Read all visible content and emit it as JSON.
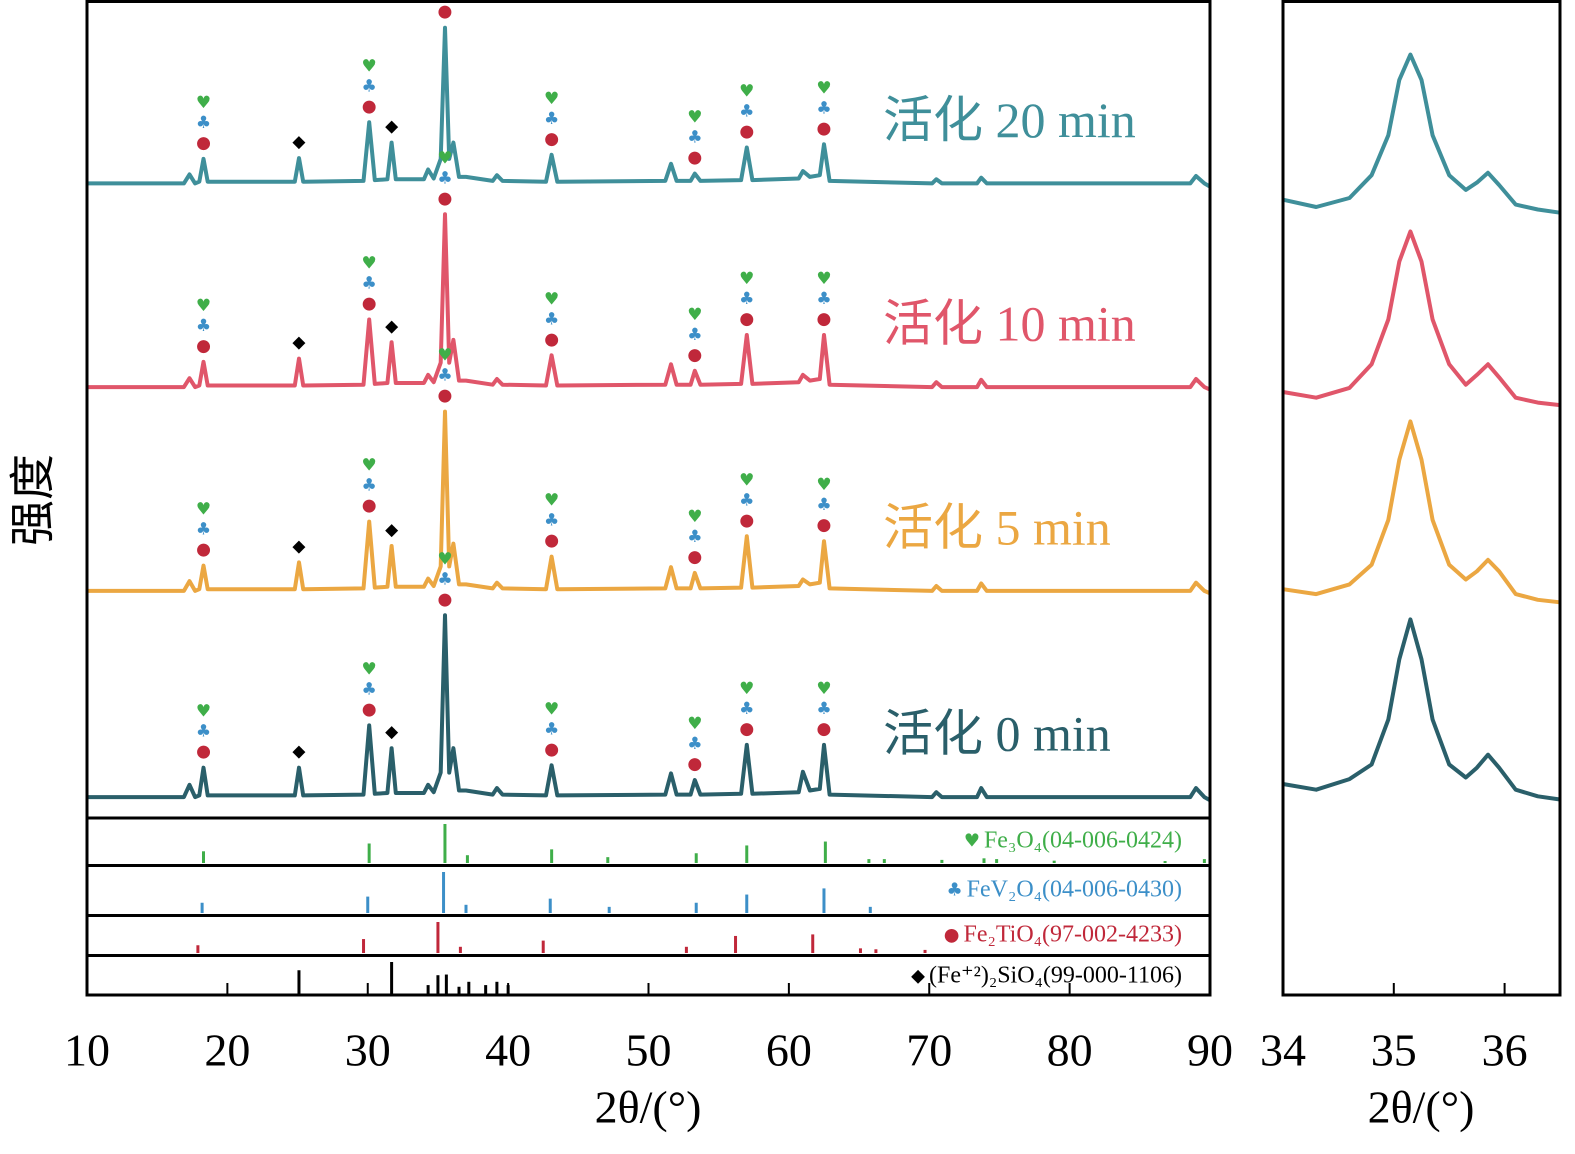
{
  "chart_data": [
    {
      "type": "line",
      "xlabel": "2θ/(°)",
      "ylabel": "强度",
      "xlim": [
        10,
        90
      ],
      "xticks": [
        10,
        20,
        30,
        40,
        50,
        60,
        70,
        80,
        90
      ],
      "ylim": [
        0,
        100
      ],
      "x": [
        10,
        16.9,
        17.3,
        17.7,
        18.0,
        18.3,
        18.6,
        24.8,
        25.1,
        25.4,
        29.7,
        30.1,
        30.5,
        31.4,
        31.7,
        32.0,
        34.0,
        34.3,
        34.7,
        35.2,
        35.5,
        35.8,
        36.1,
        36.5,
        37.0,
        38.9,
        39.2,
        39.6,
        42.7,
        43.1,
        43.5,
        51.2,
        51.6,
        52.0,
        53.0,
        53.3,
        53.7,
        56.6,
        57.0,
        57.4,
        60.7,
        61.0,
        61.5,
        62.2,
        62.5,
        62.9,
        70.2,
        70.5,
        70.9,
        73.4,
        73.7,
        74.1,
        88.6,
        89.0,
        89.6,
        90
      ],
      "series": [
        {
          "name": "活化 20 min",
          "color": "#3f8f9a",
          "values": [
            77.5,
            77.5,
            78.6,
            77.5,
            77.7,
            80.5,
            77.7,
            77.7,
            80.6,
            77.7,
            77.8,
            85.0,
            77.9,
            78.0,
            82.5,
            78.0,
            78.0,
            79.2,
            78.1,
            80.5,
            96.6,
            80.5,
            82.5,
            78.3,
            78.3,
            77.8,
            78.5,
            77.8,
            77.7,
            81.0,
            77.7,
            77.8,
            79.9,
            77.8,
            77.8,
            78.7,
            77.8,
            77.9,
            81.9,
            77.9,
            78.1,
            79.0,
            78.3,
            78.5,
            82.3,
            77.8,
            77.5,
            78.0,
            77.5,
            77.5,
            78.2,
            77.5,
            77.5,
            78.4,
            77.5,
            77.1
          ]
        },
        {
          "name": "活化 10 min",
          "color": "#e0566a",
          "values": [
            52.5,
            52.5,
            53.6,
            52.5,
            52.7,
            55.6,
            52.7,
            52.7,
            56.0,
            52.7,
            52.8,
            60.8,
            52.9,
            53.0,
            58.0,
            53.0,
            53.0,
            54.0,
            53.1,
            55.5,
            73.7,
            55.5,
            58.3,
            53.3,
            53.3,
            52.8,
            53.5,
            52.8,
            52.7,
            56.4,
            52.7,
            52.8,
            55.3,
            52.8,
            52.8,
            54.5,
            52.8,
            52.9,
            58.9,
            52.9,
            53.1,
            54.0,
            53.3,
            53.5,
            58.9,
            52.8,
            52.5,
            53.1,
            52.5,
            52.5,
            53.4,
            52.5,
            52.5,
            53.5,
            52.5,
            52.2
          ]
        },
        {
          "name": "活化 5 min",
          "color": "#eba742",
          "values": [
            27.5,
            27.5,
            28.7,
            27.5,
            27.7,
            30.6,
            27.7,
            27.7,
            31.0,
            27.7,
            27.8,
            36.0,
            27.9,
            28.0,
            33.0,
            28.0,
            28.0,
            29.0,
            28.1,
            30.5,
            49.5,
            30.5,
            33.3,
            28.3,
            28.3,
            27.8,
            28.5,
            27.8,
            27.7,
            31.7,
            27.7,
            27.8,
            30.4,
            27.8,
            27.8,
            29.7,
            27.8,
            27.9,
            34.2,
            27.9,
            28.1,
            28.9,
            28.3,
            28.5,
            33.6,
            27.8,
            27.5,
            28.1,
            27.5,
            27.5,
            28.4,
            27.5,
            27.5,
            28.5,
            27.5,
            27.2
          ]
        },
        {
          "name": "活化 0 min",
          "color": "#2a5f6a",
          "values": [
            2.2,
            2.2,
            3.7,
            2.2,
            2.4,
            5.8,
            2.4,
            2.4,
            5.8,
            2.4,
            2.5,
            11.0,
            2.6,
            2.7,
            8.2,
            2.7,
            2.7,
            3.7,
            2.8,
            5.2,
            24.5,
            5.2,
            8.2,
            3.0,
            3.0,
            2.5,
            3.3,
            2.5,
            2.4,
            6.1,
            2.4,
            2.5,
            5.1,
            2.5,
            2.5,
            4.3,
            2.5,
            2.6,
            8.6,
            2.6,
            2.8,
            5.3,
            3.0,
            3.2,
            8.6,
            2.5,
            2.2,
            2.8,
            2.2,
            2.2,
            3.3,
            2.2,
            2.2,
            3.3,
            2.2,
            1.8
          ]
        }
      ],
      "peak_markers": [
        {
          "x": 18.3,
          "phases": [
            0,
            1,
            2
          ]
        },
        {
          "x": 25.1,
          "phases": [
            3
          ]
        },
        {
          "x": 30.1,
          "phases": [
            0,
            1,
            2
          ]
        },
        {
          "x": 31.7,
          "phases": [
            3
          ]
        },
        {
          "x": 35.5,
          "phases": [
            0,
            1,
            2
          ]
        },
        {
          "x": 43.1,
          "phases": [
            0,
            1,
            2
          ]
        },
        {
          "x": 53.3,
          "phases": [
            0,
            1,
            2
          ]
        },
        {
          "x": 57.0,
          "phases": [
            0,
            1,
            2
          ]
        },
        {
          "x": 62.5,
          "phases": [
            0,
            1,
            2
          ]
        }
      ],
      "reference_patterns": [
        {
          "symbol": "♥",
          "label": "Fe₃O₄(04-006-0424)",
          "color": "#3fae49",
          "ylim": [
            0,
            100
          ],
          "positions": [
            18.3,
            30.1,
            35.5,
            37.1,
            43.1,
            47.1,
            53.4,
            57.0,
            62.6,
            65.7,
            66.8,
            70.9,
            73.9,
            74.8,
            78.9,
            86.8,
            89.6
          ],
          "intensities": [
            30,
            50,
            100,
            20,
            35,
            15,
            25,
            45,
            55,
            10,
            10,
            8,
            12,
            10,
            6,
            5,
            10
          ]
        },
        {
          "symbol": "♣",
          "label": "FeV₂O₄(04-006-0430)",
          "color": "#3c8fc8",
          "ylim": [
            0,
            100
          ],
          "positions": [
            18.2,
            30.0,
            35.4,
            37.0,
            43.0,
            47.2,
            53.4,
            57.0,
            62.5,
            65.8
          ],
          "intensities": [
            25,
            40,
            100,
            20,
            35,
            15,
            25,
            45,
            60,
            15
          ]
        },
        {
          "symbol": "●",
          "label": "Fe₂TiO₄(97-002-4233)",
          "color": "#c0283a",
          "ylim": [
            0,
            100
          ],
          "positions": [
            17.9,
            29.7,
            35.0,
            36.6,
            42.5,
            52.7,
            56.2,
            61.7,
            65.1,
            66.2,
            69.7
          ],
          "intensities": [
            25,
            45,
            100,
            20,
            40,
            20,
            55,
            60,
            15,
            12,
            10
          ]
        },
        {
          "symbol": "◆",
          "label": "(Fe⁺²)₂SiO₄(99-000-1106)",
          "color": "#000000",
          "ylim": [
            0,
            100
          ],
          "positions": [
            25.1,
            31.7,
            34.3,
            35.0,
            35.6,
            36.5,
            37.2,
            38.4,
            39.2,
            40.0
          ],
          "intensities": [
            75,
            100,
            30,
            60,
            62,
            25,
            40,
            30,
            40,
            30
          ]
        }
      ]
    },
    {
      "type": "line",
      "xlabel": "2θ/(°)",
      "xlim": [
        34,
        36.5
      ],
      "xticks": [
        34,
        35,
        36
      ],
      "ylim": [
        0,
        100
      ],
      "x": [
        34,
        34.3,
        34.6,
        34.8,
        34.95,
        35.05,
        35.15,
        35.25,
        35.35,
        35.5,
        35.65,
        35.75,
        35.85,
        35.95,
        36.1,
        36.3,
        36.5
      ],
      "series": [
        {
          "color": "#3f8f9a",
          "values": [
            75.5,
            74.6,
            75.7,
            78.5,
            83.4,
            90.2,
            93.3,
            90.2,
            83.4,
            78.5,
            76.7,
            77.6,
            78.8,
            77.3,
            74.9,
            74.3,
            73.9
          ]
        },
        {
          "color": "#e0566a",
          "values": [
            51.9,
            51.2,
            52.4,
            55.3,
            60.8,
            67.9,
            71.6,
            67.9,
            60.8,
            55.3,
            52.8,
            54.0,
            55.3,
            53.7,
            51.2,
            50.6,
            50.3
          ]
        },
        {
          "color": "#eba742",
          "values": [
            27.7,
            27.1,
            28.3,
            30.7,
            36.2,
            43.6,
            48.3,
            43.6,
            36.2,
            30.7,
            28.9,
            29.9,
            31.3,
            29.9,
            27.1,
            26.4,
            26.1
          ]
        },
        {
          "color": "#2a5f6a",
          "values": [
            3.8,
            3.1,
            4.4,
            6.2,
            11.7,
            19.1,
            24.0,
            19.1,
            11.7,
            6.2,
            4.6,
            5.8,
            7.4,
            5.8,
            3.1,
            2.3,
            1.9
          ]
        }
      ]
    }
  ]
}
